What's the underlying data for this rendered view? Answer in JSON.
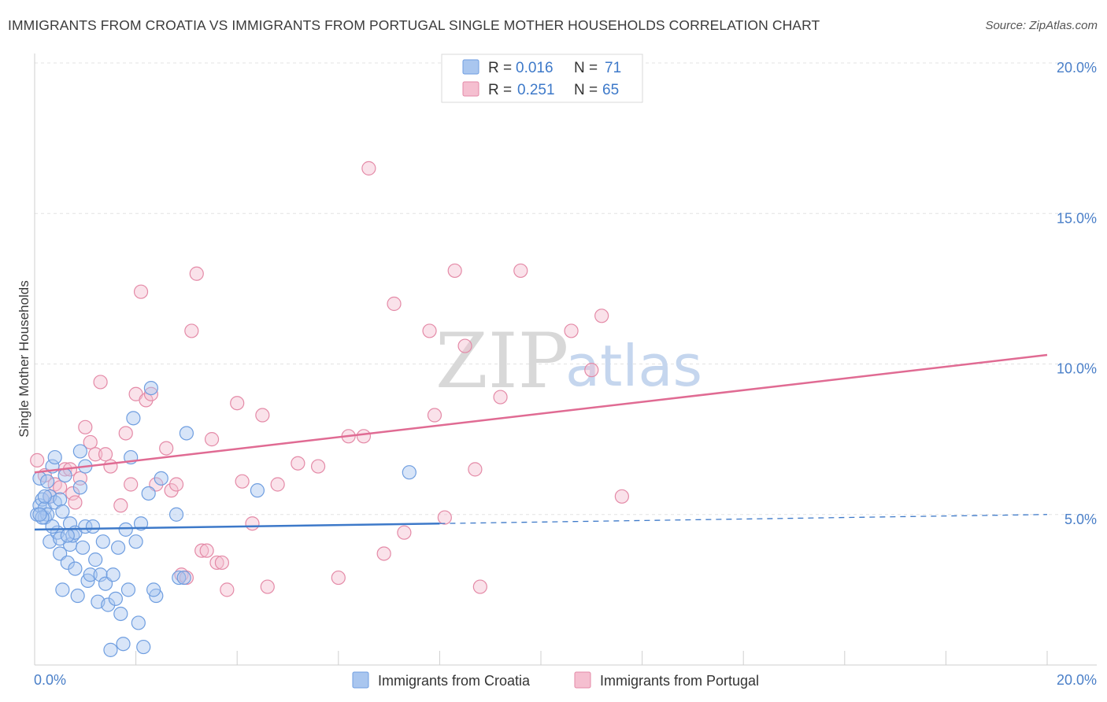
{
  "title": "IMMIGRANTS FROM CROATIA VS IMMIGRANTS FROM PORTUGAL SINGLE MOTHER HOUSEHOLDS CORRELATION CHART",
  "source": "Source: ZipAtlas.com",
  "watermark": {
    "zip": "ZIP",
    "atlas": "atlas"
  },
  "legend": {
    "rows": [
      {
        "r_label": "R =",
        "r_value": "0.016",
        "n_label": "N =",
        "n_value": "71"
      },
      {
        "r_label": "R =",
        "r_value": "0.251",
        "n_label": "N =",
        "n_value": "65"
      }
    ]
  },
  "chart_data": {
    "type": "scatter",
    "xlabel": "",
    "ylabel": "Single Mother Households",
    "xlim": [
      0,
      20
    ],
    "ylim": [
      0,
      20
    ],
    "x_tick_labels": [
      "0.0%",
      "20.0%"
    ],
    "y_ticks": [
      {
        "value": 5,
        "label": "5.0%"
      },
      {
        "value": 10,
        "label": "10.0%"
      },
      {
        "value": 15,
        "label": "15.0%"
      },
      {
        "value": 20,
        "label": "20.0%"
      }
    ],
    "grid": true,
    "legend_position": "top-center",
    "series": [
      {
        "name": "Immigrants from Croatia",
        "color": "#6f9ee0",
        "fill": "#a9c6ef",
        "trend": {
          "x0": 0,
          "y0": 4.5,
          "x1": 8,
          "y1": 4.7,
          "dashed_to_x": 20,
          "dashed_to_y": 5.0
        },
        "points": [
          [
            0.05,
            5.0
          ],
          [
            0.1,
            5.3
          ],
          [
            0.1,
            6.2
          ],
          [
            0.15,
            5.5
          ],
          [
            0.2,
            4.9
          ],
          [
            0.2,
            5.2
          ],
          [
            0.25,
            5.0
          ],
          [
            0.3,
            5.6
          ],
          [
            0.3,
            4.1
          ],
          [
            0.35,
            6.6
          ],
          [
            0.4,
            6.9
          ],
          [
            0.4,
            5.4
          ],
          [
            0.45,
            4.4
          ],
          [
            0.5,
            5.5
          ],
          [
            0.5,
            3.7
          ],
          [
            0.55,
            5.1
          ],
          [
            0.6,
            6.3
          ],
          [
            0.65,
            3.4
          ],
          [
            0.7,
            4.0
          ],
          [
            0.7,
            4.7
          ],
          [
            0.75,
            4.3
          ],
          [
            0.8,
            3.2
          ],
          [
            0.8,
            4.4
          ],
          [
            0.85,
            2.3
          ],
          [
            0.9,
            5.9
          ],
          [
            0.9,
            7.1
          ],
          [
            0.95,
            3.9
          ],
          [
            1.0,
            6.6
          ],
          [
            1.0,
            4.6
          ],
          [
            1.05,
            2.8
          ],
          [
            1.1,
            3.0
          ],
          [
            1.15,
            4.6
          ],
          [
            1.2,
            3.5
          ],
          [
            1.25,
            2.1
          ],
          [
            1.3,
            3.0
          ],
          [
            1.35,
            4.1
          ],
          [
            1.4,
            2.7
          ],
          [
            1.45,
            2.0
          ],
          [
            1.5,
            0.5
          ],
          [
            1.55,
            3.0
          ],
          [
            1.6,
            2.2
          ],
          [
            1.65,
            3.9
          ],
          [
            1.7,
            1.7
          ],
          [
            1.75,
            0.7
          ],
          [
            1.8,
            4.5
          ],
          [
            1.85,
            2.5
          ],
          [
            1.9,
            6.9
          ],
          [
            1.95,
            8.2
          ],
          [
            2.0,
            4.1
          ],
          [
            2.05,
            1.4
          ],
          [
            2.1,
            4.7
          ],
          [
            2.15,
            0.6
          ],
          [
            2.25,
            5.7
          ],
          [
            2.3,
            9.2
          ],
          [
            2.4,
            2.3
          ],
          [
            2.5,
            6.2
          ],
          [
            2.35,
            2.5
          ],
          [
            2.8,
            5.0
          ],
          [
            2.85,
            2.9
          ],
          [
            2.95,
            2.9
          ],
          [
            3.0,
            7.7
          ],
          [
            0.35,
            4.6
          ],
          [
            0.55,
            2.5
          ],
          [
            0.15,
            4.9
          ],
          [
            0.25,
            6.1
          ],
          [
            0.5,
            4.2
          ],
          [
            0.65,
            4.3
          ],
          [
            4.4,
            5.8
          ],
          [
            7.4,
            6.4
          ],
          [
            0.1,
            5.0
          ],
          [
            0.2,
            5.6
          ]
        ]
      },
      {
        "name": "Immigrants from Portugal",
        "color": "#e48aa7",
        "fill": "#f5bfd0",
        "trend": {
          "x0": 0,
          "y0": 6.4,
          "x1": 20,
          "y1": 10.3
        },
        "points": [
          [
            0.05,
            6.8
          ],
          [
            0.2,
            6.3
          ],
          [
            0.3,
            5.6
          ],
          [
            0.4,
            6.0
          ],
          [
            0.5,
            5.9
          ],
          [
            0.6,
            6.5
          ],
          [
            0.7,
            6.5
          ],
          [
            0.75,
            5.7
          ],
          [
            0.8,
            5.4
          ],
          [
            0.9,
            6.2
          ],
          [
            1.0,
            7.9
          ],
          [
            1.1,
            7.4
          ],
          [
            1.2,
            7.0
          ],
          [
            1.3,
            9.4
          ],
          [
            1.4,
            7.0
          ],
          [
            1.5,
            6.6
          ],
          [
            1.7,
            5.3
          ],
          [
            1.8,
            7.7
          ],
          [
            1.9,
            6.0
          ],
          [
            2.0,
            9.0
          ],
          [
            2.1,
            12.4
          ],
          [
            2.2,
            8.8
          ],
          [
            2.3,
            9.0
          ],
          [
            2.4,
            6.0
          ],
          [
            2.6,
            7.2
          ],
          [
            2.7,
            5.8
          ],
          [
            2.8,
            6.0
          ],
          [
            2.9,
            3.0
          ],
          [
            3.0,
            2.9
          ],
          [
            3.1,
            11.1
          ],
          [
            3.2,
            13.0
          ],
          [
            3.3,
            3.8
          ],
          [
            3.4,
            3.8
          ],
          [
            3.5,
            7.5
          ],
          [
            3.6,
            3.4
          ],
          [
            3.7,
            3.4
          ],
          [
            3.8,
            2.5
          ],
          [
            4.0,
            8.7
          ],
          [
            4.1,
            6.1
          ],
          [
            4.3,
            4.7
          ],
          [
            4.5,
            8.3
          ],
          [
            4.6,
            2.6
          ],
          [
            4.8,
            6.0
          ],
          [
            5.2,
            6.7
          ],
          [
            5.6,
            6.6
          ],
          [
            6.0,
            2.9
          ],
          [
            6.2,
            7.6
          ],
          [
            6.5,
            7.6
          ],
          [
            6.6,
            16.5
          ],
          [
            6.9,
            3.7
          ],
          [
            7.1,
            12.0
          ],
          [
            7.3,
            4.4
          ],
          [
            7.8,
            11.1
          ],
          [
            7.9,
            8.3
          ],
          [
            8.1,
            4.9
          ],
          [
            8.3,
            13.1
          ],
          [
            8.5,
            10.6
          ],
          [
            8.7,
            6.5
          ],
          [
            8.8,
            2.6
          ],
          [
            9.2,
            8.9
          ],
          [
            9.6,
            13.1
          ],
          [
            10.6,
            11.1
          ],
          [
            11.0,
            9.8
          ],
          [
            11.2,
            11.6
          ],
          [
            11.6,
            5.6
          ]
        ]
      }
    ]
  },
  "extra_portugal_points_note": "",
  "bottom_legend": [
    "Immigrants from Croatia",
    "Immigrants from Portugal"
  ]
}
